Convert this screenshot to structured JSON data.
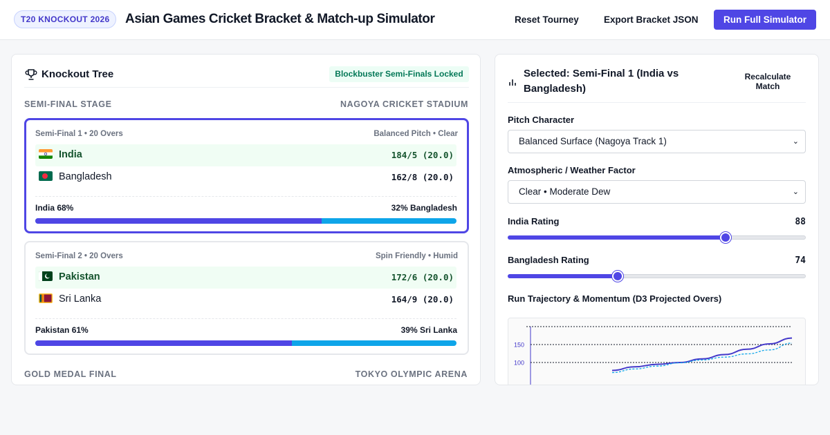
{
  "header": {
    "badge": "T20 KNOCKOUT 2026",
    "title": "Asian Games Cricket Bracket & Match-up Simulator",
    "reset_label": "Reset Tourney",
    "export_label": "Export Bracket JSON",
    "run_label": "Run Full Simulator"
  },
  "bracket": {
    "title": "Knockout Tree",
    "status_badge": "Blockbuster Semi-Finals Locked",
    "semi_stage": {
      "label": "SEMI-FINAL STAGE",
      "venue": "NAGOYA CRICKET STADIUM"
    },
    "final_stage": {
      "label": "GOLD MEDAL FINAL",
      "venue": "TOKYO OLYMPIC ARENA"
    },
    "matches": [
      {
        "label": "Semi-Final 1 • 20 Overs",
        "conditions": "Balanced Pitch • Clear",
        "team1": {
          "name": "India",
          "score": "184/5 (20.0)",
          "flag": "india-flag"
        },
        "team2": {
          "name": "Bangladesh",
          "score": "162/8 (20.0)",
          "flag": "bangladesh-flag"
        },
        "prob_left": "India 68%",
        "prob_right": "32% Bangladesh",
        "win_prob": 0.68
      },
      {
        "label": "Semi-Final 2 • 20 Overs",
        "conditions": "Spin Friendly • Humid",
        "team1": {
          "name": "Pakistan",
          "score": "172/6 (20.0)",
          "flag": "pakistan-flag"
        },
        "team2": {
          "name": "Sri Lanka",
          "score": "164/9 (20.0)",
          "flag": "sri-lanka-flag"
        },
        "prob_left": "Pakistan 61%",
        "prob_right": "39% Sri Lanka",
        "win_prob": 0.61
      }
    ]
  },
  "detail": {
    "title": "Selected: Semi-Final 1 (India vs Bangladesh)",
    "recalc_label": "Recalculate Match",
    "pitch_label": "Pitch Character",
    "pitch_value": "Balanced Surface (Nagoya Track 1)",
    "weather_label": "Atmospheric / Weather Factor",
    "weather_value": "Clear • Moderate Dew",
    "rating1_label": "India Rating",
    "rating1_value": "88",
    "rating1_level": 0.73,
    "rating2_label": "Bangladesh Rating",
    "rating2_value": "74",
    "rating2_level": 0.37,
    "chart_title": "Run Trajectory & Momentum (D3 Projected Overs)"
  },
  "chart_data": {
    "type": "line",
    "y_ticks": [
      "100",
      "150"
    ],
    "grid": true,
    "series": [
      {
        "color": "#4338ca",
        "style": "solid",
        "x": [
          12,
          13,
          14,
          15,
          16,
          17,
          18,
          19,
          20
        ],
        "values": [
          78,
          88,
          95,
          100,
          110,
          122,
          137,
          152,
          168
        ]
      },
      {
        "color": "#0ea5e9",
        "style": "dashed",
        "x": [
          12,
          13,
          14,
          15,
          16,
          17,
          18,
          19,
          20
        ],
        "values": [
          72,
          82,
          90,
          99,
          107,
          115,
          124,
          135,
          154
        ]
      }
    ],
    "colors": {
      "india": "#4f46e5",
      "bangladesh": "#0ea5e9"
    }
  }
}
